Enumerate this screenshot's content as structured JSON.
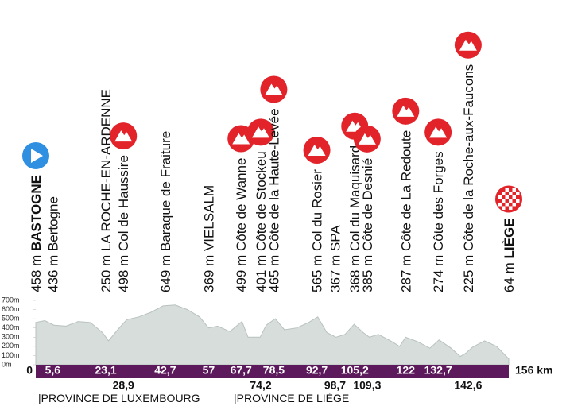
{
  "waypoints": [
    {
      "altitude": "458 m",
      "name": "BASTOGNE",
      "icon": "start"
    },
    {
      "altitude": "436 m",
      "name": "Bertogne",
      "icon": null
    },
    {
      "altitude": "250 m",
      "name": "LA ROCHE-EN-ARDENNE",
      "icon": null
    },
    {
      "altitude": "498 m",
      "name": "Col de Haussire",
      "icon": "climb"
    },
    {
      "altitude": "649 m",
      "name": "Baraque de Fraiture",
      "icon": null
    },
    {
      "altitude": "369 m",
      "name": "VIELSALM",
      "icon": null
    },
    {
      "altitude": "499 m",
      "name": "Côte de Wanne",
      "icon": "climb"
    },
    {
      "altitude": "401 m",
      "name": "Côte de Stockeu",
      "icon": "climb"
    },
    {
      "altitude": "465 m",
      "name": "Côte de la Haute-Levée",
      "icon": "climb"
    },
    {
      "altitude": "565 m",
      "name": "Col du Rosier",
      "icon": "climb"
    },
    {
      "altitude": "367 m",
      "name": "SPA",
      "icon": null
    },
    {
      "altitude": "368 m",
      "name": "Col du Maquisard",
      "icon": "climb"
    },
    {
      "altitude": "385 m",
      "name": "Côte de Desnié",
      "icon": "climb"
    },
    {
      "altitude": "287 m",
      "name": "Côte de La Redoute",
      "icon": "climb"
    },
    {
      "altitude": "274 m",
      "name": "Côte des Forges",
      "icon": "climb"
    },
    {
      "altitude": "225 m",
      "name": "Côte de la Roche-aux-Faucons",
      "icon": "climb"
    },
    {
      "altitude": "64 m",
      "name": "LIÈGE",
      "icon": "finish"
    }
  ],
  "km_markers": [
    {
      "value": 0,
      "label": "0"
    },
    {
      "value": 5.6,
      "label": "5,6"
    },
    {
      "value": 23.1,
      "label": "23,1"
    },
    {
      "value": 28.9,
      "label": "28,9",
      "below": true
    },
    {
      "value": 42.7,
      "label": "42,7"
    },
    {
      "value": 57,
      "label": "57"
    },
    {
      "value": 67.7,
      "label": "67,7"
    },
    {
      "value": 74.2,
      "label": "74,2",
      "below": true
    },
    {
      "value": 78.5,
      "label": "78,5"
    },
    {
      "value": 92.7,
      "label": "92,7"
    },
    {
      "value": 98.7,
      "label": "98,7",
      "below": true
    },
    {
      "value": 105.2,
      "label": "105,2"
    },
    {
      "value": 109.3,
      "label": "109,3",
      "below": true
    },
    {
      "value": 122,
      "label": "122"
    },
    {
      "value": 132.7,
      "label": "132,7"
    },
    {
      "value": 142.6,
      "label": "142,6",
      "below": true
    },
    {
      "value": 156,
      "label": "156 km"
    }
  ],
  "provinces": [
    "|PROVINCE DE LUXEMBOURG",
    "|PROVINCE DE LIÈGE"
  ],
  "chart_data": {
    "type": "area",
    "color": "#d6ddda",
    "x": [
      0,
      3,
      6,
      10,
      14,
      18,
      22,
      24,
      27,
      30,
      34,
      38,
      42,
      46,
      50,
      54,
      57,
      60,
      64,
      68,
      70,
      74,
      76,
      79,
      82,
      86,
      90,
      93,
      96,
      99,
      102,
      105,
      108,
      110,
      113,
      117,
      120,
      122,
      126,
      130,
      133,
      137,
      140,
      142,
      144,
      148,
      152,
      156
    ],
    "values": [
      460,
      480,
      430,
      420,
      470,
      460,
      350,
      260,
      380,
      490,
      520,
      570,
      640,
      650,
      600,
      520,
      400,
      420,
      360,
      470,
      300,
      300,
      430,
      500,
      380,
      400,
      460,
      520,
      350,
      300,
      330,
      440,
      350,
      300,
      330,
      260,
      200,
      300,
      250,
      180,
      270,
      180,
      90,
      130,
      190,
      260,
      200,
      64
    ],
    "xlim": [
      0,
      156
    ],
    "ylim": [
      0,
      700
    ],
    "yticks": [
      {
        "value": 0,
        "label": "0m"
      },
      {
        "value": 100,
        "label": "100m"
      },
      {
        "value": 200,
        "label": "200m"
      },
      {
        "value": 300,
        "label": "300m"
      },
      {
        "value": 400,
        "label": "400m"
      },
      {
        "value": 500,
        "label": "500m"
      },
      {
        "value": 600,
        "label": "600m"
      },
      {
        "value": 700,
        "label": "700m"
      }
    ]
  }
}
